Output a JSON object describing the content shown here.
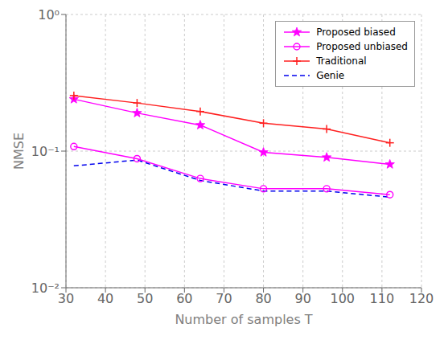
{
  "chart_data": {
    "type": "line",
    "title": "",
    "xlabel": "Number of samples T",
    "ylabel": "NMSE",
    "log": "y",
    "grid": true,
    "legend": "upper right",
    "xlim": [
      30,
      120
    ],
    "ylim": [
      0.01,
      1.0
    ],
    "xticks": [
      30,
      40,
      50,
      60,
      70,
      80,
      90,
      100,
      110,
      120
    ],
    "yticks": [
      {
        "value": 0.01,
        "label": "10⁻²"
      },
      {
        "value": 0.1,
        "label": "10⁻¹"
      },
      {
        "value": 1.0,
        "label": "10⁰"
      }
    ],
    "x": [
      32,
      48,
      64,
      80,
      96,
      112
    ],
    "series": [
      {
        "name": "Proposed biased",
        "color": "#FF00FF",
        "marker": "star",
        "line_style": "solid",
        "values": [
          0.24,
          0.19,
          0.155,
          0.098,
          0.09,
          0.08
        ]
      },
      {
        "name": "Proposed unbiased",
        "color": "#FF00FF",
        "marker": "circle",
        "line_style": "solid",
        "values": [
          0.108,
          0.088,
          0.063,
          0.053,
          0.053,
          0.048
        ]
      },
      {
        "name": "Traditional",
        "color": "#FF2020",
        "marker": "plus",
        "line_style": "solid",
        "values": [
          0.255,
          0.225,
          0.195,
          0.16,
          0.145,
          0.115
        ]
      },
      {
        "name": "Genie",
        "color": "#0000EE",
        "line_style": "dashed",
        "values": [
          0.078,
          0.086,
          0.061,
          0.051,
          0.051,
          0.046
        ]
      }
    ]
  }
}
